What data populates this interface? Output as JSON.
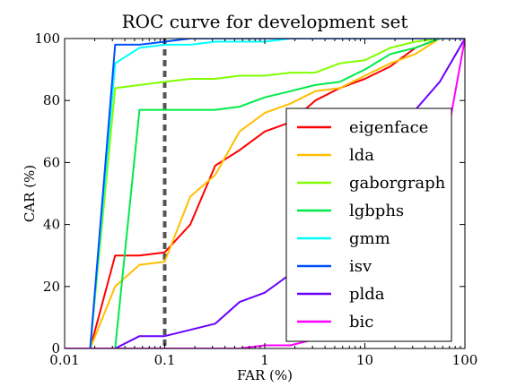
{
  "chart_data": {
    "type": "line",
    "title": "ROC curve for development set",
    "xlabel": "FAR (%)",
    "ylabel": "CAR (%)",
    "xscale": "log",
    "xlim": [
      0.01,
      100
    ],
    "ylim": [
      0,
      100
    ],
    "xticks": [
      0.01,
      0.1,
      1,
      10,
      100
    ],
    "xtick_labels": [
      "0.01",
      "0.1",
      "1",
      "10",
      "100"
    ],
    "yticks": [
      0,
      20,
      40,
      60,
      80,
      100
    ],
    "ytick_labels": [
      "0",
      "20",
      "40",
      "60",
      "80",
      "100"
    ],
    "grid": false,
    "legend_position": "lower-right",
    "reference_line": {
      "x": 0.1,
      "style": "dashed",
      "color": "#555555"
    },
    "series": [
      {
        "name": "eigenface",
        "color": "#ff0000",
        "points": [
          [
            0.01,
            0
          ],
          [
            0.018,
            0
          ],
          [
            0.032,
            30
          ],
          [
            0.056,
            30
          ],
          [
            0.1,
            31
          ],
          [
            0.18,
            40
          ],
          [
            0.32,
            59
          ],
          [
            0.56,
            64
          ],
          [
            1,
            70
          ],
          [
            1.8,
            73
          ],
          [
            3.2,
            80
          ],
          [
            5.6,
            84
          ],
          [
            10,
            87
          ],
          [
            18,
            91
          ],
          [
            32,
            97
          ],
          [
            56,
            100
          ],
          [
            100,
            100
          ]
        ]
      },
      {
        "name": "lda",
        "color": "#ffbf00",
        "points": [
          [
            0.01,
            0
          ],
          [
            0.018,
            0
          ],
          [
            0.032,
            20
          ],
          [
            0.056,
            27
          ],
          [
            0.1,
            28
          ],
          [
            0.18,
            49
          ],
          [
            0.32,
            56
          ],
          [
            0.56,
            70
          ],
          [
            1,
            76
          ],
          [
            1.8,
            79
          ],
          [
            3.2,
            83
          ],
          [
            5.6,
            84
          ],
          [
            10,
            88
          ],
          [
            18,
            92
          ],
          [
            32,
            95
          ],
          [
            56,
            100
          ],
          [
            100,
            100
          ]
        ]
      },
      {
        "name": "gaborgraph",
        "color": "#80ff00",
        "points": [
          [
            0.01,
            0
          ],
          [
            0.018,
            0
          ],
          [
            0.032,
            84
          ],
          [
            0.056,
            85
          ],
          [
            0.1,
            86
          ],
          [
            0.18,
            87
          ],
          [
            0.32,
            87
          ],
          [
            0.56,
            88
          ],
          [
            1,
            88
          ],
          [
            1.8,
            89
          ],
          [
            3.2,
            89
          ],
          [
            5.6,
            92
          ],
          [
            10,
            93
          ],
          [
            18,
            97
          ],
          [
            32,
            99
          ],
          [
            56,
            100
          ],
          [
            100,
            100
          ]
        ]
      },
      {
        "name": "lgbphs",
        "color": "#00ea4a",
        "points": [
          [
            0.01,
            0
          ],
          [
            0.032,
            0
          ],
          [
            0.056,
            77
          ],
          [
            0.1,
            77
          ],
          [
            0.18,
            77
          ],
          [
            0.32,
            77
          ],
          [
            0.56,
            78
          ],
          [
            1,
            81
          ],
          [
            1.8,
            83
          ],
          [
            3.2,
            85
          ],
          [
            5.6,
            86
          ],
          [
            10,
            90
          ],
          [
            18,
            95
          ],
          [
            32,
            97
          ],
          [
            56,
            100
          ],
          [
            100,
            100
          ]
        ]
      },
      {
        "name": "gmm",
        "color": "#00ffff",
        "points": [
          [
            0.01,
            0
          ],
          [
            0.018,
            0
          ],
          [
            0.032,
            92
          ],
          [
            0.056,
            97
          ],
          [
            0.1,
            98
          ],
          [
            0.18,
            98
          ],
          [
            0.32,
            99
          ],
          [
            0.56,
            99
          ],
          [
            1,
            99
          ],
          [
            1.8,
            100
          ],
          [
            100,
            100
          ]
        ]
      },
      {
        "name": "isv",
        "color": "#0050ff",
        "points": [
          [
            0.01,
            0
          ],
          [
            0.018,
            0
          ],
          [
            0.032,
            98
          ],
          [
            0.056,
            98
          ],
          [
            0.1,
            99
          ],
          [
            0.18,
            100
          ],
          [
            100,
            100
          ]
        ]
      },
      {
        "name": "plda",
        "color": "#6a00ff",
        "points": [
          [
            0.01,
            0
          ],
          [
            0.032,
            0
          ],
          [
            0.056,
            4
          ],
          [
            0.1,
            4
          ],
          [
            0.18,
            6
          ],
          [
            0.32,
            8
          ],
          [
            0.56,
            15
          ],
          [
            1,
            18
          ],
          [
            1.8,
            24
          ],
          [
            3.2,
            28
          ],
          [
            5.6,
            36
          ],
          [
            10,
            46
          ],
          [
            18,
            62
          ],
          [
            32,
            77
          ],
          [
            56,
            86
          ],
          [
            100,
            100
          ]
        ]
      },
      {
        "name": "bic",
        "color": "#ff00ff",
        "points": [
          [
            0.01,
            0
          ],
          [
            0.56,
            0
          ],
          [
            1,
            1
          ],
          [
            1.8,
            1
          ],
          [
            3.2,
            3
          ],
          [
            5.6,
            5
          ],
          [
            10,
            8
          ],
          [
            18,
            15
          ],
          [
            32,
            32
          ],
          [
            56,
            55
          ],
          [
            100,
            100
          ]
        ]
      }
    ]
  }
}
